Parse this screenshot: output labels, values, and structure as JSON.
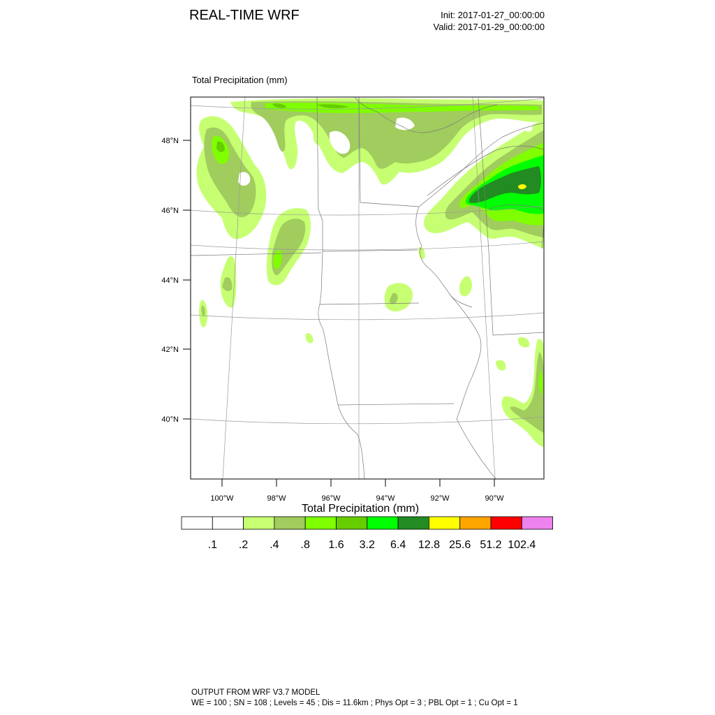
{
  "header": {
    "title": "REAL-TIME WRF",
    "init": "Init: 2017-01-27_00:00:00",
    "valid": "Valid: 2017-01-29_00:00:00"
  },
  "map": {
    "field_label": "Total Precipitation   (mm)",
    "lat_labels": [
      "48°N",
      "46°N",
      "44°N",
      "42°N",
      "40°N"
    ],
    "lon_labels": [
      "100°W",
      "98°W",
      "96°W",
      "94°W",
      "92°W",
      "90°W"
    ]
  },
  "legend": {
    "title": "Total Precipitation  (mm)",
    "boundaries": [
      ".1",
      ".2",
      ".4",
      ".8",
      "1.6",
      "3.2",
      "6.4",
      "12.8",
      "25.6",
      "51.2",
      "102.4"
    ],
    "colors": [
      "#ffffff",
      "#ffffff",
      "#c6ff72",
      "#a1cc5e",
      "#7fff00",
      "#66cd00",
      "#00ff00",
      "#228b22",
      "#ffff00",
      "#ffa500",
      "#ff0000",
      "#ee82ee"
    ]
  },
  "footer": {
    "line1": "OUTPUT FROM WRF V3.7 MODEL",
    "line2": "WE = 100 ; SN = 108 ; Levels = 45 ; Dis = 11.6km ; Phys Opt = 3 ; PBL Opt = 1 ; Cu Opt = 1"
  }
}
